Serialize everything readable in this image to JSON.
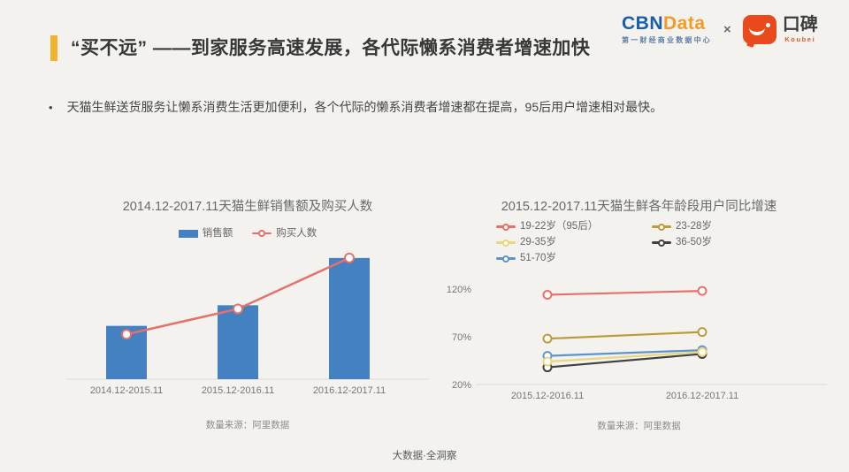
{
  "page": {
    "background": "#f3f2ef",
    "footer_text": "大数据·全洞察"
  },
  "header": {
    "title": "“买不远” ——到家服务高速发展，各代际懒系消费者增速加快",
    "accent_color": "#efb32d",
    "logos": {
      "cbn": "CBN",
      "data": "Data",
      "cbn_color": "#1a5dab",
      "data_color": "#f59a23",
      "cbndata_subtitle": "第一财经商业数据中心",
      "separator": "×",
      "koubei_cn": "口碑",
      "koubei_en": "Koubei",
      "koubei_color": "#e84a1c"
    }
  },
  "bullet": {
    "marker": "•",
    "text": "天猫生鲜送货服务让懒系消费生活更加便利，各个代际的懒系消费者增速都在提高，95后用户增速相对最快。"
  },
  "chart_data": [
    {
      "type": "bar",
      "title": "2014.12-2017.11天猫生鲜销售额及购买人数",
      "categories": [
        "2014.12-2015.11",
        "2015.12-2016.11",
        "2016.12-2017.11"
      ],
      "series": [
        {
          "name": "销售额",
          "kind": "bar",
          "color": "#4381c1",
          "values": [
            44,
            61,
            100
          ]
        },
        {
          "name": "购买人数",
          "kind": "line",
          "color": "#e8706a",
          "values": [
            37,
            58,
            100
          ]
        }
      ],
      "ylim": [
        0,
        105
      ],
      "y_axis_visible": false,
      "units": "relative index (max = 100, y-axis not labeled in source)",
      "legend_position": "top",
      "source": "数量来源：阿里数据"
    },
    {
      "type": "line",
      "title": "2015.12-2017.11天猫生鲜各年龄段用户同比增速",
      "categories": [
        "2015.12-2016.11",
        "2016.12-2017.11"
      ],
      "series": [
        {
          "name": "19-22岁（95后）",
          "kind": "line",
          "color": "#e8706a",
          "values": [
            114,
            118
          ]
        },
        {
          "name": "23-28岁",
          "kind": "line",
          "color": "#bd9b3b",
          "values": [
            68,
            75
          ]
        },
        {
          "name": "29-35岁",
          "kind": "line",
          "color": "#e9d67d",
          "values": [
            44,
            54
          ]
        },
        {
          "name": "36-50岁",
          "kind": "line",
          "color": "#414141",
          "values": [
            38,
            52
          ]
        },
        {
          "name": "51-70岁",
          "kind": "line",
          "color": "#5f93cd",
          "values": [
            50,
            56
          ]
        }
      ],
      "yticks": [
        20,
        70,
        120
      ],
      "ytick_labels": [
        "20%",
        "70%",
        "120%"
      ],
      "ylim": [
        20,
        130
      ],
      "legend_position": "top",
      "source": "数量来源：阿里数据"
    }
  ]
}
